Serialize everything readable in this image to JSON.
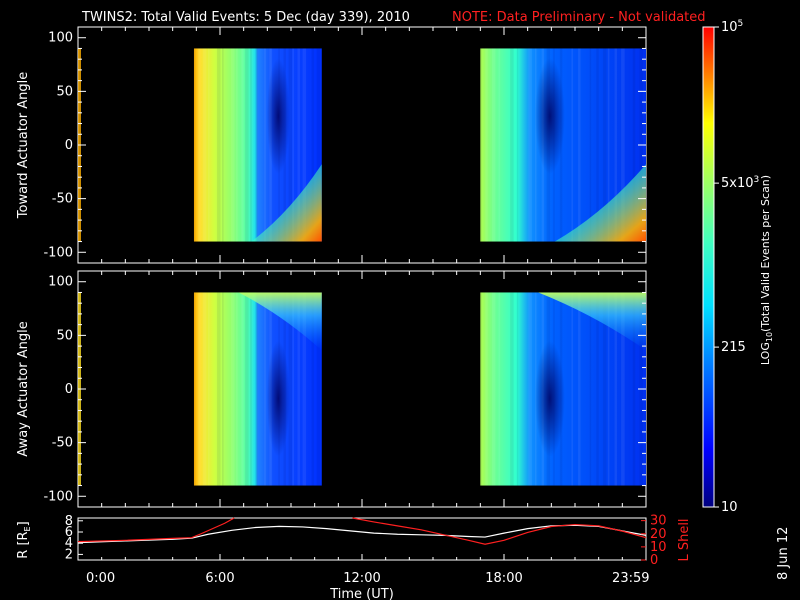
{
  "header": {
    "title": "TWINS2: Total Valid Events:  5 Dec (day 339), 2010",
    "note": "NOTE: Data Preliminary - Not validated"
  },
  "colors": {
    "background": "#000000",
    "foreground": "#ffffff",
    "note": "#ff2020",
    "lshell": "#ff2020",
    "radius": "#ffffff"
  },
  "footer": {
    "date_stamp": "8 Jun 12"
  },
  "chart_data": [
    {
      "type": "heatmap",
      "ylabel": "Toward Actuator Angle",
      "ylim": [
        -110,
        110
      ],
      "yticks": [
        100,
        50,
        0,
        -50,
        -100
      ],
      "xlim": [
        0,
        24
      ],
      "data_blocks": [
        {
          "t_start": 4.9,
          "t_end": 10.3,
          "angle_range": [
            -90,
            90
          ]
        },
        {
          "t_start": 17.0,
          "t_end": 24.0,
          "angle_range": [
            -90,
            90
          ]
        }
      ],
      "grid": false
    },
    {
      "type": "heatmap",
      "ylabel": "Away Actuator Angle",
      "ylim": [
        -110,
        110
      ],
      "yticks": [
        100,
        50,
        0,
        -50,
        -100
      ],
      "xlim": [
        0,
        24
      ],
      "data_blocks": [
        {
          "t_start": 4.9,
          "t_end": 10.3,
          "angle_range": [
            -90,
            90
          ]
        },
        {
          "t_start": 17.0,
          "t_end": 24.0,
          "angle_range": [
            -90,
            90
          ]
        }
      ],
      "grid": false
    },
    {
      "type": "colorbar",
      "label_main": "LOG",
      "label_sub": "10",
      "label_rest": "(Total Valid Events per Scan)",
      "scale": "log",
      "range": [
        10,
        100000
      ],
      "ticks": [
        {
          "value": 100000,
          "label_base": "10",
          "label_exp": "5"
        },
        {
          "value": 5000,
          "label_base": "5x10",
          "label_exp": "3"
        },
        {
          "value": 215,
          "label_base": "215",
          "label_exp": ""
        },
        {
          "value": 10,
          "label_base": "10",
          "label_exp": ""
        }
      ]
    },
    {
      "type": "line",
      "xlabel": "Time (UT)",
      "xticks": [
        {
          "value": 0,
          "label": "0:00"
        },
        {
          "value": 6,
          "label": "6:00"
        },
        {
          "value": 12,
          "label": "12:00"
        },
        {
          "value": 18,
          "label": "18:00"
        },
        {
          "value": 23.98,
          "label": "23:59"
        }
      ],
      "xlim": [
        0,
        24
      ],
      "left_axis": {
        "label_base": "R [R",
        "label_sub": "E",
        "label_end": "]",
        "ylim": [
          1,
          8.5
        ],
        "ticks": [
          8,
          6,
          4,
          2
        ]
      },
      "right_axis": {
        "label": "L Shell",
        "ylim": [
          0,
          32
        ],
        "ticks": [
          30,
          20,
          10,
          0
        ]
      },
      "series": [
        {
          "axis": "left",
          "x": [
            0,
            2,
            4,
            4.8,
            5.5,
            6.5,
            7.5,
            8.5,
            9.5,
            10.5,
            11.5,
            12.5,
            13.5,
            14.5,
            15.5,
            16.5,
            17.2,
            18,
            19,
            20,
            21,
            22,
            23,
            24
          ],
          "values": [
            4.1,
            4.4,
            4.7,
            4.9,
            5.6,
            6.3,
            6.8,
            7.0,
            6.9,
            6.6,
            6.2,
            5.8,
            5.6,
            5.5,
            5.4,
            5.2,
            5.1,
            5.8,
            6.6,
            7.1,
            7.2,
            7.0,
            6.2,
            5.4
          ]
        },
        {
          "axis": "right",
          "x": [
            0,
            2,
            4,
            4.8,
            5.2,
            5.7,
            6.2,
            6.6
          ],
          "values": [
            14,
            15,
            16.5,
            17,
            20,
            24,
            28,
            32
          ]
        },
        {
          "axis": "right",
          "x": [
            11.6,
            12.5,
            13.5,
            14.5,
            15.5,
            16.5,
            17.2,
            18,
            19,
            20,
            21,
            22,
            23,
            24
          ],
          "values": [
            32,
            29,
            26,
            23,
            19,
            15,
            12,
            15,
            21,
            25.5,
            27,
            26,
            22,
            17
          ]
        }
      ]
    }
  ]
}
